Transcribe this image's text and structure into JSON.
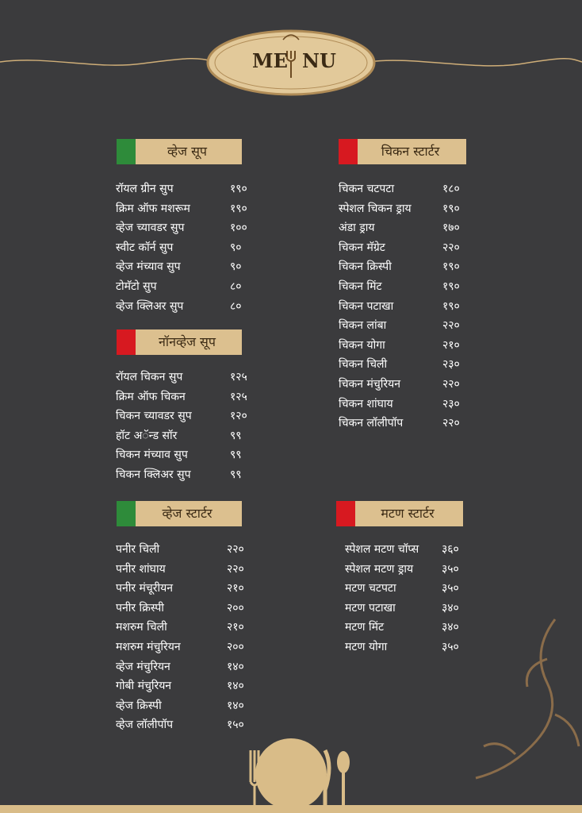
{
  "header": {
    "title": [
      "ME",
      "NU"
    ]
  },
  "sections": [
    {
      "heading": "व्हेज सूप",
      "marker_color": "#2e8b3a",
      "items": [
        [
          "रॉयल ग्रीन सुप",
          "१९०"
        ],
        [
          "क्रिम ऑफ मशरूम",
          "१९०"
        ],
        [
          "व्हेज च्यावडर सुप",
          "१००"
        ],
        [
          "स्वीट कॉर्न सुप",
          "९०"
        ],
        [
          "व्हेज मंच्याव सुप",
          "९०"
        ],
        [
          "टोमॅटो सुप",
          "८०"
        ],
        [
          "व्हेज क्लिअर सुप",
          "८०"
        ]
      ]
    },
    {
      "heading": "नॉनव्हेज सूप",
      "marker_color": "#d71920",
      "items": [
        [
          "रॉयल चिकन सुप",
          "१२५"
        ],
        [
          "क्रिम ऑफ चिकन",
          "१२५"
        ],
        [
          "चिकन च्यावडर सुप",
          "१२०"
        ],
        [
          "हॉट अॅन्ड सॉर",
          "९९"
        ],
        [
          "चिकन मंच्याव सुप",
          "९९"
        ],
        [
          "चिकन क्लिअर सुप",
          "९९"
        ]
      ]
    },
    {
      "heading": "व्हेज स्टार्टर",
      "marker_color": "#2e8b3a",
      "items": [
        [
          "पनीर चिली",
          "२२०"
        ],
        [
          "पनीर शांघाय",
          "२२०"
        ],
        [
          "पनीर मंचूरीयन",
          "२१०"
        ],
        [
          "पनीर क्रिस्पी",
          "२००"
        ],
        [
          "मशरुम चिली",
          "२१०"
        ],
        [
          "मशरुम मंचुरियन",
          "२००"
        ],
        [
          "व्हेज मंचुरियन",
          "१४०"
        ],
        [
          "गोबी मंचुरियन",
          "१४०"
        ],
        [
          "व्हेज क्रिस्पी",
          "१४०"
        ],
        [
          "व्हेज लॉलीपॉप",
          "१५०"
        ]
      ]
    },
    {
      "heading": "चिकन स्टार्टर",
      "marker_color": "#d71920",
      "items": [
        [
          "चिकन चटपटा",
          "१८०"
        ],
        [
          "स्पेशल चिकन ड्राय",
          "१९०"
        ],
        [
          "अंडा ड्राय",
          "१७०"
        ],
        [
          "चिकन मॅग्रेट",
          "२२०"
        ],
        [
          "चिकन क्रिस्पी",
          "१९०"
        ],
        [
          "चिकन मिंट",
          "१९०"
        ],
        [
          "चिकन पटाखा",
          "१९०"
        ],
        [
          "चिकन लांबा",
          "२२०"
        ],
        [
          "चिकन योगा",
          "२१०"
        ],
        [
          "चिकन चिली",
          "२३०"
        ],
        [
          "चिकन मंचुरियन",
          "२२०"
        ],
        [
          "चिकन शांघाय",
          "२३०"
        ],
        [
          "चिकन लॉलीपॉप",
          "२२०"
        ]
      ]
    },
    {
      "heading": "मटण स्टार्टर",
      "marker_color": "#d71920",
      "items": [
        [
          "स्पेशल मटण चॉप्स",
          "३६०"
        ],
        [
          "स्पेशल मटण ड्राय",
          "३५०"
        ],
        [
          "मटण चटपटा",
          "३५०"
        ],
        [
          "मटण पटाखा",
          "३४०"
        ],
        [
          "मटण मिंट",
          "३४०"
        ],
        [
          "मटण योगा",
          "३५०"
        ]
      ]
    }
  ]
}
